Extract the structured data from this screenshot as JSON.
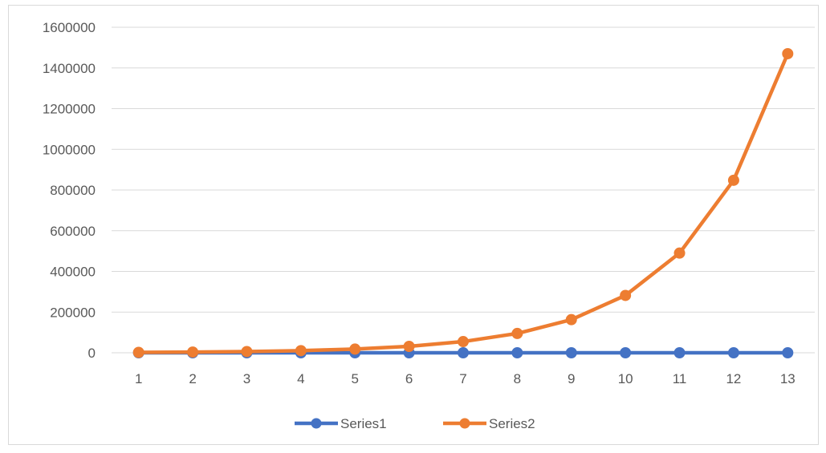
{
  "chart_data": {
    "type": "line",
    "title": "",
    "xlabel": "",
    "ylabel": "",
    "categories": [
      "1",
      "2",
      "3",
      "4",
      "5",
      "6",
      "7",
      "8",
      "9",
      "10",
      "11",
      "12",
      "13"
    ],
    "ylim": [
      0,
      1600000
    ],
    "yticks": [
      "0",
      "200000",
      "400000",
      "600000",
      "800000",
      "1000000",
      "1200000",
      "1400000",
      "1600000"
    ],
    "grid": "horizontal",
    "legend": "bottom",
    "series": [
      {
        "name": "Series1",
        "color": "#4472c4",
        "values": [
          1,
          2,
          3,
          4,
          5,
          6,
          7,
          8,
          9,
          10,
          11,
          12,
          13
        ]
      },
      {
        "name": "Series2",
        "color": "#ed7d31",
        "values": [
          2000,
          3500,
          6000,
          10500,
          18000,
          31500,
          55000,
          95000,
          163000,
          282000,
          490000,
          848000,
          1470000
        ]
      }
    ]
  }
}
